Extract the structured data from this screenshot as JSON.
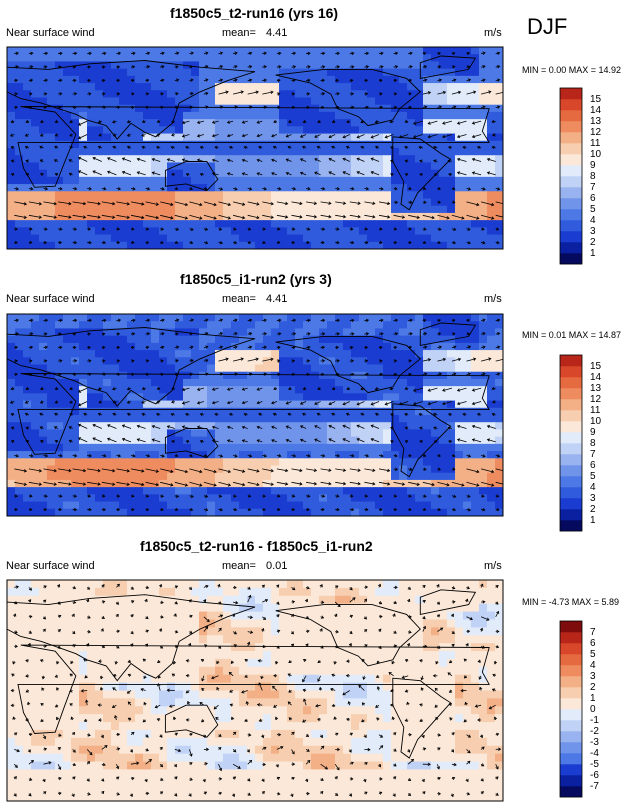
{
  "page": {
    "season": "DJF"
  },
  "colors": {
    "seq": [
      "#050a5f",
      "#0a20a0",
      "#1b3cd1",
      "#2f5bdc",
      "#4c79e6",
      "#7094ea",
      "#98b3f0",
      "#c0d2f6",
      "#e1ebfa",
      "#fbe8d8",
      "#f7cfb0",
      "#f3b087",
      "#ee8c5f",
      "#e66a3f",
      "#d9472a",
      "#b8261a",
      "#7e0c0c"
    ],
    "div": [
      "#050a5f",
      "#0a20a0",
      "#1b3cd1",
      "#4c79e6",
      "#7094ea",
      "#98b3f0",
      "#c0d2f6",
      "#e1ebfa",
      "#fbe8d8",
      "#f7cfb0",
      "#f3b087",
      "#ee8c5f",
      "#e66a3f",
      "#d9472a",
      "#b8261a",
      "#7e0c0c"
    ]
  },
  "panels": [
    {
      "title": "f1850c5_t2-run16 (yrs 16)",
      "variable": "Near surface wind",
      "mean_label": "mean=",
      "mean_value": "4.41",
      "units": "m/s",
      "minmax": "MIN =   0.00 MAX = 14.92"
    },
    {
      "title": "f1850c5_i1-run2 (yrs 3)",
      "variable": "Near surface wind",
      "mean_label": "mean=",
      "mean_value": "4.41",
      "units": "m/s",
      "minmax": "MIN =   0.01 MAX = 14.87"
    },
    {
      "title": "f1850c5_t2-run16 - f1850c5_i1-run2",
      "variable": "Near surface wind",
      "mean_label": "mean=",
      "mean_value": "0.01",
      "units": "m/s",
      "minmax": "MIN =  -4.73 MAX =   5.89"
    }
  ],
  "chart_data": [
    {
      "type": "heatmap",
      "title": "f1850c5_t2-run16 (yrs 16)",
      "field": "Near surface wind speed with wind vectors",
      "units": "m/s",
      "mean": 4.41,
      "min": 0.0,
      "max": 14.92,
      "colorbar_levels": [
        1,
        2,
        3,
        4,
        5,
        6,
        7,
        8,
        9,
        10,
        11,
        12,
        13,
        14,
        15
      ]
    },
    {
      "type": "heatmap",
      "title": "f1850c5_i1-run2 (yrs 3)",
      "field": "Near surface wind speed with wind vectors",
      "units": "m/s",
      "mean": 4.41,
      "min": 0.01,
      "max": 14.87,
      "colorbar_levels": [
        1,
        2,
        3,
        4,
        5,
        6,
        7,
        8,
        9,
        10,
        11,
        12,
        13,
        14,
        15
      ]
    },
    {
      "type": "heatmap",
      "title": "f1850c5_t2-run16 - f1850c5_i1-run2",
      "field": "Near surface wind speed difference with wind vectors",
      "units": "m/s",
      "mean": 0.01,
      "min": -4.73,
      "max": 5.89,
      "colorbar_levels": [
        -7,
        -6,
        -5,
        -4,
        -3,
        -2,
        -1,
        0,
        1,
        2,
        3,
        4,
        5,
        6,
        7
      ]
    }
  ]
}
